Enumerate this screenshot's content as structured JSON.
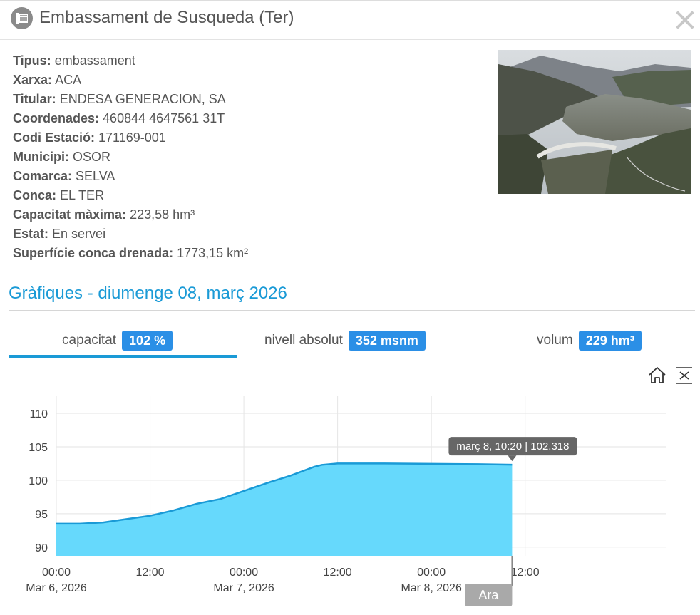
{
  "header": {
    "title": "Embassament de Susqueda (Ter)",
    "icon": "reservoir-icon",
    "close_icon": "close-icon"
  },
  "info": [
    {
      "key": "Tipus:",
      "value": "embassament"
    },
    {
      "key": "Xarxa:",
      "value": "ACA"
    },
    {
      "key": "Titular:",
      "value": "ENDESA GENERACION, SA"
    },
    {
      "key": "Coordenades:",
      "value": "460844 4647561 31T"
    },
    {
      "key": "Codi Estació:",
      "value": "171169-001"
    },
    {
      "key": "Municipi:",
      "value": "OSOR"
    },
    {
      "key": "Comarca:",
      "value": "SELVA"
    },
    {
      "key": "Conca:",
      "value": "EL TER"
    },
    {
      "key": "Capacitat màxima:",
      "value": "223,58 hm³"
    },
    {
      "key": "Estat:",
      "value": "En servei"
    },
    {
      "key": "Superfície conca drenada:",
      "value": "1773,15 km²"
    }
  ],
  "graphs": {
    "title": "Gràfiques - diumenge 08, març 2026",
    "tabs": [
      {
        "label": "capacitat",
        "badge": "102 %",
        "active": true
      },
      {
        "label": "nivell absolut",
        "badge": "352 msnm",
        "active": false
      },
      {
        "label": "volum",
        "badge": "229 hm³",
        "active": false
      }
    ],
    "tools": [
      "home-icon",
      "zoom-fit-icon"
    ]
  },
  "colors": {
    "accent": "#1a9ad6",
    "badge": "#2b8fe6",
    "area_fill": "#66d9fc",
    "area_line": "#1a9ad6"
  },
  "chart_data": {
    "type": "area",
    "yticks": [
      90,
      95,
      100,
      105,
      110
    ],
    "ylim": [
      88.7,
      110
    ],
    "xlim": [
      "2026-03-06 00:00",
      "2026-03-09 06:00"
    ],
    "xticks": [
      {
        "t": "2026-03-06 00:00",
        "time": "00:00",
        "date": "Mar 6, 2026"
      },
      {
        "t": "2026-03-06 12:00",
        "time": "12:00",
        "date": ""
      },
      {
        "t": "2026-03-07 00:00",
        "time": "00:00",
        "date": "Mar 7, 2026"
      },
      {
        "t": "2026-03-07 12:00",
        "time": "12:00",
        "date": ""
      },
      {
        "t": "2026-03-08 00:00",
        "time": "00:00",
        "date": "Mar 8, 2026"
      },
      {
        "t": "2026-03-08 12:00",
        "time": "12:00",
        "date": ""
      }
    ],
    "points": [
      [
        "2026-03-06 00:00",
        93.5
      ],
      [
        "2026-03-06 03:00",
        93.5
      ],
      [
        "2026-03-06 06:00",
        93.7
      ],
      [
        "2026-03-06 09:00",
        94.2
      ],
      [
        "2026-03-06 12:00",
        94.7
      ],
      [
        "2026-03-06 15:00",
        95.5
      ],
      [
        "2026-03-06 18:00",
        96.5
      ],
      [
        "2026-03-06 21:00",
        97.2
      ],
      [
        "2026-03-07 00:00",
        98.4
      ],
      [
        "2026-03-07 03:00",
        99.6
      ],
      [
        "2026-03-07 06:00",
        100.7
      ],
      [
        "2026-03-07 09:00",
        102.0
      ],
      [
        "2026-03-07 10:00",
        102.3
      ],
      [
        "2026-03-07 12:00",
        102.5
      ],
      [
        "2026-03-07 18:00",
        102.5
      ],
      [
        "2026-03-08 00:00",
        102.45
      ],
      [
        "2026-03-08 06:00",
        102.4
      ],
      [
        "2026-03-08 10:20",
        102.318
      ]
    ],
    "tooltip": "març 8, 10:20 | 102.318",
    "now_label": "Ara",
    "grid": true
  }
}
